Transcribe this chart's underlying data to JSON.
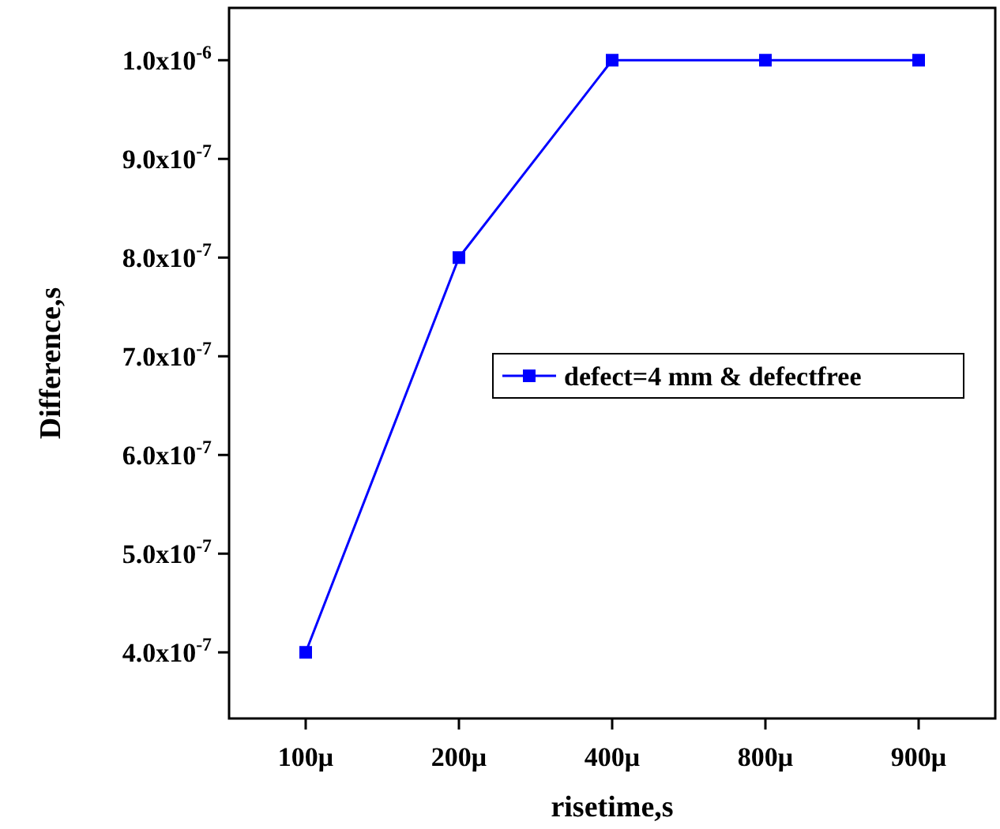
{
  "chart_data": {
    "type": "line",
    "xlabel": "risetime,s",
    "ylabel": "Difference,s",
    "categories": [
      "100μ",
      "200μ",
      "400μ",
      "800μ",
      "900μ"
    ],
    "series": [
      {
        "name": "defect=4 mm & defectfree",
        "color": "#0000ff",
        "values": [
          4e-07,
          8e-07,
          1e-06,
          1e-06,
          1e-06
        ]
      }
    ],
    "ylim": [
      3.33e-07,
      1.053e-06
    ],
    "yticks": [
      {
        "value": 4e-07,
        "label": "4.0x10$^{-7}$"
      },
      {
        "value": 5e-07,
        "label": "5.0x10$^{-7}$"
      },
      {
        "value": 6e-07,
        "label": "6.0x10$^{-7}$"
      },
      {
        "value": 7e-07,
        "label": "7.0x10$^{-7}$"
      },
      {
        "value": 8e-07,
        "label": "8.0x10$^{-7}$"
      },
      {
        "value": 9e-07,
        "label": "9.0x10$^{-7}$"
      },
      {
        "value": 1e-06,
        "label": "1.0x10$^{-6}$"
      }
    ],
    "marker": "square",
    "line_style": "solid",
    "legend": "right",
    "grid": false
  }
}
